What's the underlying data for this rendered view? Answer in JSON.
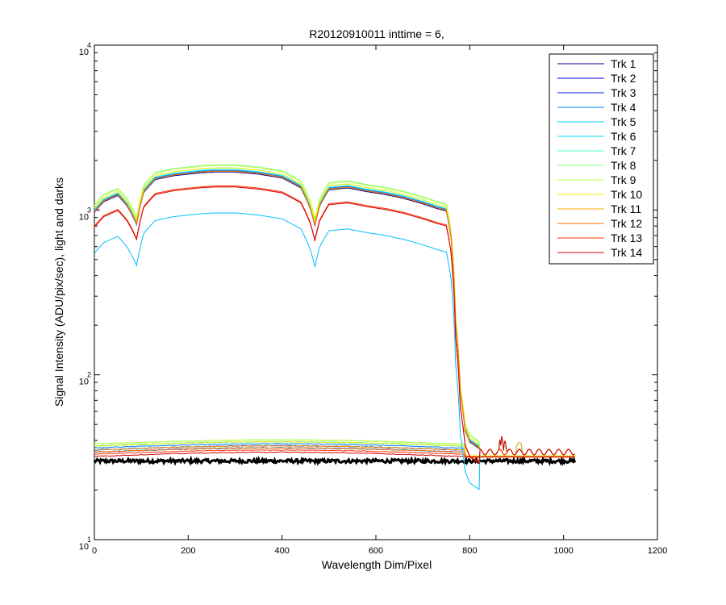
{
  "chart_data": {
    "type": "line",
    "title": "R20120910011 inttime = 6,",
    "xlabel": "Wavelength Dim/Pixel",
    "ylabel": "Signal Intensity (ADU/pix/sec), light and darks",
    "xlim": [
      0,
      1200
    ],
    "ylim": [
      10,
      10000
    ],
    "yscale": "log",
    "xticks": [
      0,
      200,
      400,
      600,
      800,
      1000,
      1200
    ],
    "yticks": [
      10,
      100,
      1000,
      10000
    ],
    "ytick_labels": [
      {
        "base": "10",
        "exp": "1"
      },
      {
        "base": "10",
        "exp": "2"
      },
      {
        "base": "10",
        "exp": "3"
      },
      {
        "base": "10",
        "exp": "4"
      }
    ],
    "grid": false,
    "legend_position": "top-right",
    "light_profile": {
      "x": [
        0,
        20,
        50,
        70,
        90,
        105,
        130,
        170,
        200,
        230,
        260,
        300,
        350,
        400,
        440,
        460,
        470,
        480,
        500,
        540,
        580,
        620,
        660,
        700,
        730,
        750,
        760,
        770,
        780,
        790,
        800,
        820,
        1024
      ],
      "factor": [
        0.57,
        0.66,
        0.72,
        0.62,
        0.48,
        0.75,
        0.9,
        0.95,
        0.97,
        0.99,
        1.0,
        1.0,
        0.97,
        0.92,
        0.8,
        0.6,
        0.47,
        0.62,
        0.78,
        0.8,
        0.76,
        0.73,
        0.69,
        0.64,
        0.6,
        0.58,
        0.4,
        0.12,
        0.045,
        0.027,
        0.023,
        0.021,
        0.021
      ]
    },
    "series": [
      {
        "name": "Trk 1",
        "color": "#00008f",
        "peak": 1700,
        "dark": 35
      },
      {
        "name": "Trk 2",
        "color": "#0000d0",
        "peak": 1720,
        "dark": 34
      },
      {
        "name": "Trk 3",
        "color": "#0020ff",
        "peak": 1730,
        "dark": 35
      },
      {
        "name": "Trk 4",
        "color": "#0080ff",
        "peak": 1740,
        "dark": 36
      },
      {
        "name": "Trk 5",
        "color": "#00bfff",
        "peak": 960,
        "dark": 34
      },
      {
        "name": "Trk 6",
        "color": "#00e0ff",
        "peak": 1760,
        "dark": 37
      },
      {
        "name": "Trk 7",
        "color": "#40ffd0",
        "peak": 1800,
        "dark": 37
      },
      {
        "name": "Trk 8",
        "color": "#80ff80",
        "peak": 1880,
        "dark": 38
      },
      {
        "name": "Trk 9",
        "color": "#c0ff40",
        "peak": 1860,
        "dark": 38
      },
      {
        "name": "Trk 10",
        "color": "#f0f000",
        "peak": 1800,
        "dark": 37
      },
      {
        "name": "Trk 11",
        "color": "#ffb000",
        "peak": 1720,
        "dark": 35
      },
      {
        "name": "Trk 12",
        "color": "#ff7000",
        "peak": 1720,
        "dark": 34
      },
      {
        "name": "Trk 13",
        "color": "#ff3000",
        "peak": 1400,
        "dark": 33
      },
      {
        "name": "Trk 14",
        "color": "#d00000",
        "peak": 1380,
        "dark": 32
      }
    ],
    "dark_floor": 30
  }
}
